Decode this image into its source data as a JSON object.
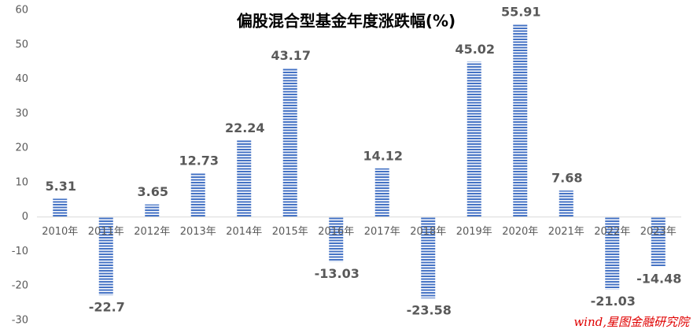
{
  "chart_data": {
    "type": "bar",
    "title": "偏股混合型基金年度涨跌幅(%)",
    "categories": [
      "2010年",
      "2011年",
      "2012年",
      "2013年",
      "2014年",
      "2015年",
      "2016年",
      "2017年",
      "2018年",
      "2019年",
      "2020年",
      "2021年",
      "2022年",
      "2023年"
    ],
    "values": [
      5.31,
      -22.7,
      3.65,
      12.73,
      22.24,
      43.17,
      -13.03,
      14.12,
      -23.58,
      45.02,
      55.91,
      7.68,
      -21.03,
      -14.48
    ],
    "color": "#4472c4",
    "ylim": [
      -30,
      60
    ],
    "yticks": [
      -30,
      -20,
      -10,
      0,
      10,
      20,
      30,
      40,
      50,
      60
    ],
    "grid": false,
    "source": "wind,星图金融研究院"
  }
}
